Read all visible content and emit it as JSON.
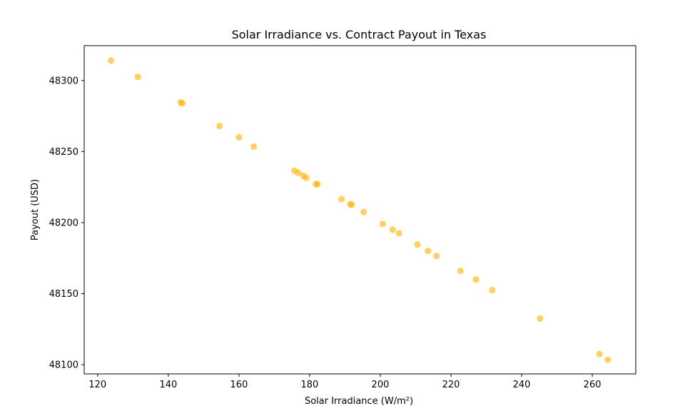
{
  "chart_data": {
    "type": "scatter",
    "title": "Solar Irradiance vs. Contract Payout in Texas",
    "xlabel": "Solar Irradiance (W/m²)",
    "ylabel": "Payout (USD)",
    "xlim": [
      116.2,
      272.3
    ],
    "ylim": [
      48093.5,
      48324.5
    ],
    "xticks": [
      120,
      140,
      160,
      180,
      200,
      220,
      240,
      260
    ],
    "yticks": [
      48100,
      48150,
      48200,
      48250,
      48300
    ],
    "grid": false,
    "marker_color": "#FFB000",
    "marker_alpha": 0.6,
    "series": [
      {
        "points": [
          {
            "x": 123.8,
            "y": 48314.0
          },
          {
            "x": 131.4,
            "y": 48302.5
          },
          {
            "x": 143.5,
            "y": 48284.5
          },
          {
            "x": 144.0,
            "y": 48284.0
          },
          {
            "x": 154.5,
            "y": 48268.0
          },
          {
            "x": 160.0,
            "y": 48260.0
          },
          {
            "x": 164.2,
            "y": 48253.5
          },
          {
            "x": 175.7,
            "y": 48236.5
          },
          {
            "x": 176.8,
            "y": 48235.0
          },
          {
            "x": 178.2,
            "y": 48233.0
          },
          {
            "x": 179.0,
            "y": 48231.5
          },
          {
            "x": 181.8,
            "y": 48227.0
          },
          {
            "x": 182.2,
            "y": 48227.0
          },
          {
            "x": 189.0,
            "y": 48216.5
          },
          {
            "x": 191.5,
            "y": 48213.0
          },
          {
            "x": 191.9,
            "y": 48212.5
          },
          {
            "x": 195.3,
            "y": 48207.5
          },
          {
            "x": 200.7,
            "y": 48199.0
          },
          {
            "x": 203.5,
            "y": 48195.0
          },
          {
            "x": 205.3,
            "y": 48192.5
          },
          {
            "x": 210.5,
            "y": 48184.5
          },
          {
            "x": 213.5,
            "y": 48180.0
          },
          {
            "x": 215.9,
            "y": 48176.5
          },
          {
            "x": 222.7,
            "y": 48166.0
          },
          {
            "x": 227.1,
            "y": 48160.0
          },
          {
            "x": 231.7,
            "y": 48152.5
          },
          {
            "x": 245.2,
            "y": 48132.5
          },
          {
            "x": 262.0,
            "y": 48107.5
          },
          {
            "x": 264.4,
            "y": 48103.5
          }
        ]
      }
    ]
  }
}
